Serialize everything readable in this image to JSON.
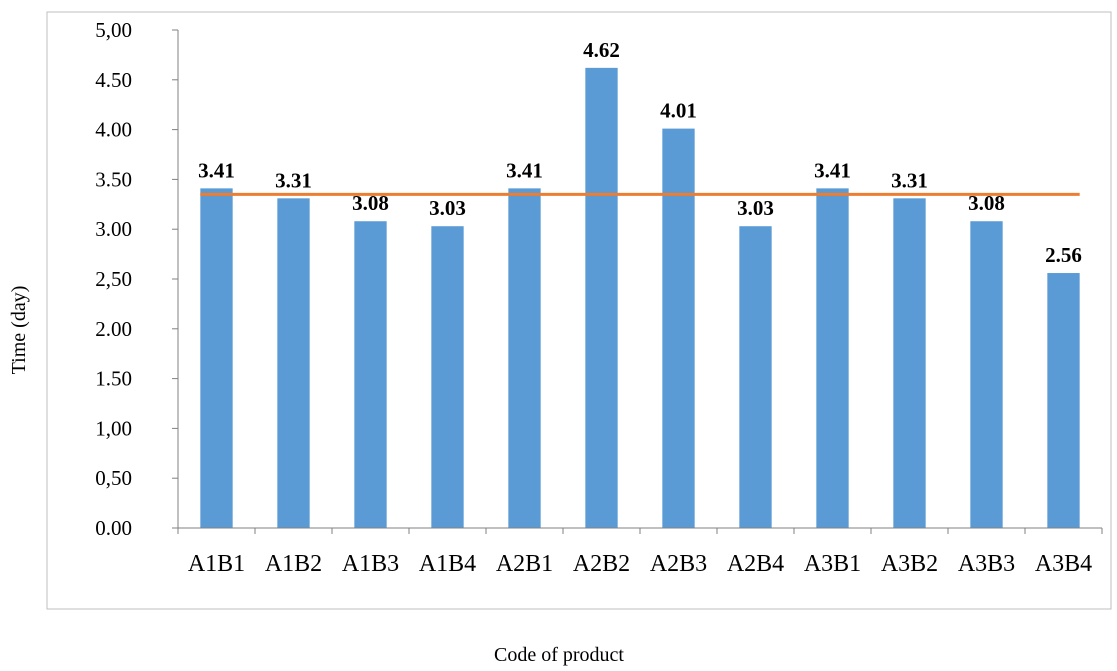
{
  "chart_data": {
    "type": "bar",
    "title": "",
    "xlabel": "Code of product",
    "ylabel": "Time (day)",
    "ylim": [
      0,
      5
    ],
    "yticks": [
      0,
      0.5,
      1,
      1.5,
      2,
      2.5,
      3,
      3.5,
      4,
      4.5,
      5
    ],
    "ytick_labels": [
      "0.00",
      "0,50",
      "1,00",
      "1.50",
      "2.00",
      "2,50",
      "3.00",
      "3.50",
      "4.00",
      "4.50",
      "5,00"
    ],
    "categories": [
      "A1B1",
      "A1B2",
      "A1B3",
      "A1B4",
      "A2B1",
      "A2B2",
      "A2B3",
      "A2B4",
      "A3B1",
      "A3B2",
      "A3B3",
      "A3B4"
    ],
    "values": [
      3.41,
      3.31,
      3.08,
      3.03,
      3.41,
      4.62,
      4.01,
      3.03,
      3.41,
      3.31,
      3.08,
      2.56
    ],
    "value_labels": [
      "3.41",
      "3.31",
      "3.08",
      "3.03",
      "3.41",
      "4.62",
      "4.01",
      "3.03",
      "3.41",
      "3.31",
      "3.08",
      "2.56"
    ],
    "reference_line": {
      "value": 3.35
    },
    "grid": false,
    "legend": "none",
    "colors": {
      "bar": "#5b9bd5",
      "reference_line": "#ed7d31",
      "axis": "#808080"
    }
  }
}
